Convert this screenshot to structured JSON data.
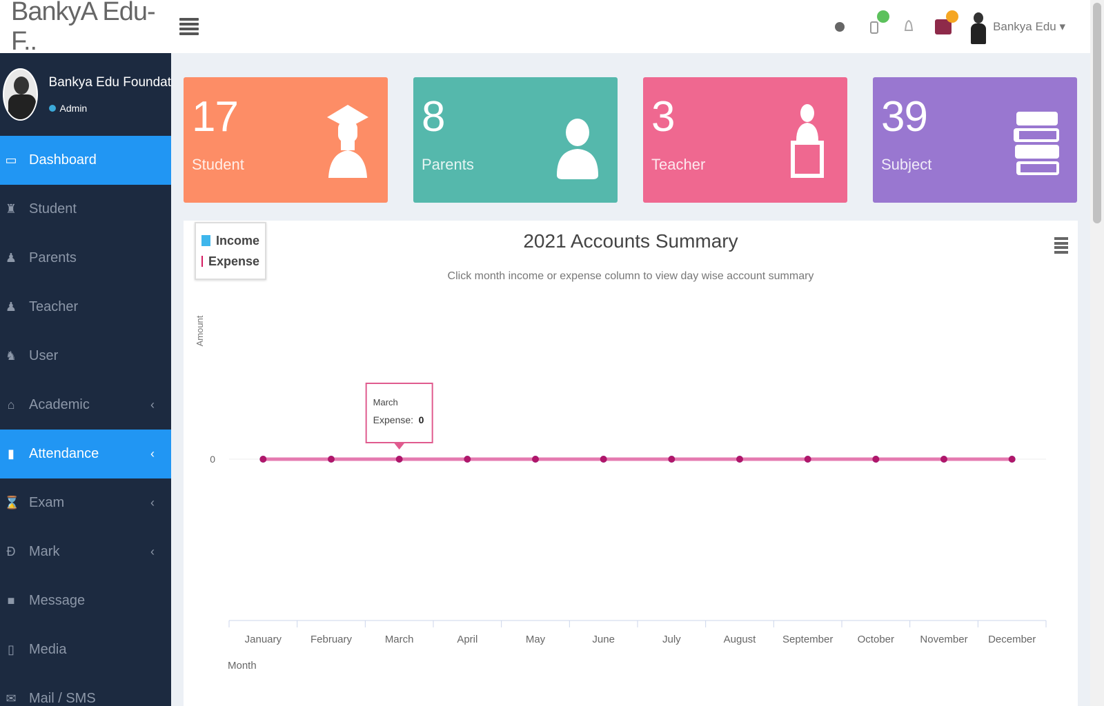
{
  "header": {
    "logo": "BankyA Edu-F..",
    "user_name": "Bankya Edu ▾"
  },
  "sidebar": {
    "profile_name": "Bankya Edu Foundat",
    "profile_role": "Admin",
    "items": [
      {
        "label": "Dashboard",
        "icon": "dashboard-icon"
      },
      {
        "label": "Student",
        "icon": "student-icon"
      },
      {
        "label": "Parents",
        "icon": "parents-icon"
      },
      {
        "label": "Teacher",
        "icon": "teacher-icon"
      },
      {
        "label": "User",
        "icon": "user-icon"
      },
      {
        "label": "Academic",
        "icon": "academic-icon"
      },
      {
        "label": "Attendance",
        "icon": "attendance-icon"
      },
      {
        "label": "Exam",
        "icon": "exam-icon"
      },
      {
        "label": "Mark",
        "icon": "mark-icon"
      },
      {
        "label": "Message",
        "icon": "message-icon"
      },
      {
        "label": "Media",
        "icon": "media-icon"
      },
      {
        "label": "Mail / SMS",
        "icon": "mail-icon"
      }
    ]
  },
  "cards": [
    {
      "value": "17",
      "label": "Student",
      "color": "#fd8d66",
      "icon": "graduate-icon"
    },
    {
      "value": "8",
      "label": "Parents",
      "color": "#55b8ac",
      "icon": "person-icon"
    },
    {
      "value": "3",
      "label": "Teacher",
      "color": "#ef6890",
      "icon": "teacher-icon"
    },
    {
      "value": "39",
      "label": "Subject",
      "color": "#9977d0",
      "icon": "books-icon"
    }
  ],
  "colors": {
    "sidebar_bg": "#1c2a40",
    "active_blue": "#2196f3",
    "income": "#3eb6ec",
    "expense": "#d51a60"
  },
  "chart_data": {
    "type": "line",
    "title": "2021 Accounts Summary",
    "subtitle": "Click month income or expense column to view day wise account summary",
    "xlabel": "Month",
    "ylabel": "Amount",
    "categories": [
      "January",
      "February",
      "March",
      "April",
      "May",
      "June",
      "July",
      "August",
      "September",
      "October",
      "November",
      "December"
    ],
    "series": [
      {
        "name": "Income",
        "values": [
          0,
          0,
          0,
          0,
          0,
          0,
          0,
          0,
          0,
          0,
          0,
          0
        ]
      },
      {
        "name": "Expense",
        "values": [
          0,
          0,
          0,
          0,
          0,
          0,
          0,
          0,
          0,
          0,
          0,
          0
        ]
      }
    ],
    "y_ticks": [
      "0"
    ],
    "legend": "top-left",
    "tooltip": {
      "month": "March",
      "series": "Expense",
      "value": "0"
    }
  }
}
